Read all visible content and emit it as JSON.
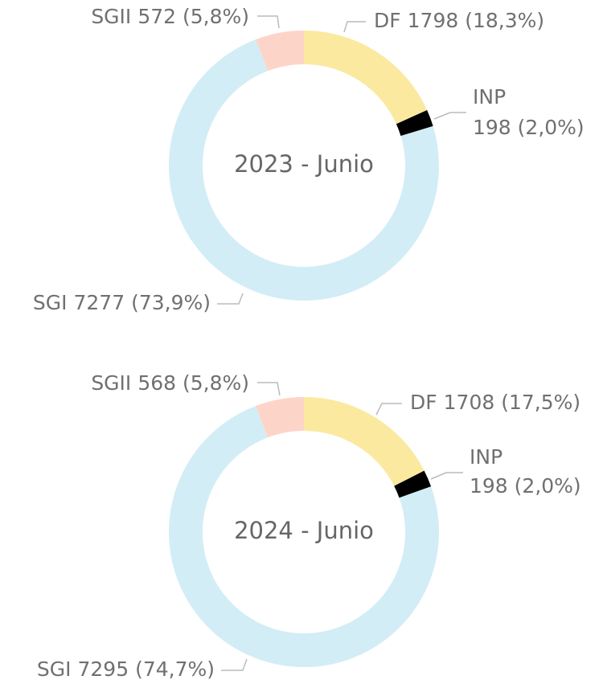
{
  "chart_data": [
    {
      "type": "donut",
      "title": "2023 - Junio",
      "categories": [
        "DF",
        "INP",
        "SGI",
        "SGII"
      ],
      "values": [
        1798,
        198,
        7277,
        572
      ],
      "value_labels": [
        "1798 (18,3%)",
        "198 (2,0%)",
        "7277 (73,9%)",
        "572 (5,8%)"
      ],
      "colors": [
        "#fbe9a0",
        "#000000",
        "#d3edf7",
        "#fdd5c8"
      ]
    },
    {
      "type": "donut",
      "title": "2024 - Junio",
      "categories": [
        "DF",
        "INP",
        "SGI",
        "SGII"
      ],
      "values": [
        1708,
        198,
        7295,
        568
      ],
      "value_labels": [
        "1708 (17,5%)",
        "198 (2,0%)",
        "7295 (74,7%)",
        "568 (5,8%)"
      ],
      "colors": [
        "#fbe9a0",
        "#000000",
        "#d3edf7",
        "#fdd5c8"
      ]
    }
  ]
}
